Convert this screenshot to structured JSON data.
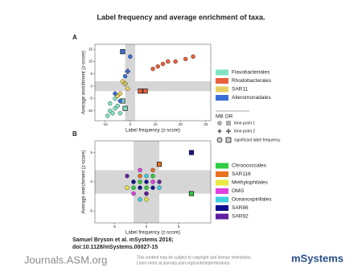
{
  "title": "Label frequency and average enrichment of taxa.",
  "chart_data": [
    {
      "type": "scatter",
      "panel": "A",
      "xlabel": "Label frequency (z-score)",
      "ylabel": "Average enrichment (z-score)",
      "xlim": [
        -14,
        32
      ],
      "ylim": [
        -14,
        17
      ],
      "xticks": [
        -10,
        0,
        10,
        20,
        30
      ],
      "yticks": [
        -10,
        -5,
        0,
        5,
        10,
        15
      ],
      "bands": {
        "x": [
          -2,
          2
        ],
        "y": [
          -2,
          2
        ]
      },
      "series": [
        {
          "name": "Flavobacteriales",
          "color": "#7fe3c3",
          "x": [
            -9,
            -8,
            -7,
            -6,
            -5,
            -4,
            -8,
            -3,
            -6,
            -2
          ],
          "values": [
            -12,
            -10,
            -11,
            -9,
            -8,
            -11,
            -7,
            -6,
            -5,
            -9
          ],
          "markers": [
            "circle",
            "circle",
            "circle",
            "circle",
            "circle",
            "circle",
            "circle",
            "square",
            "circle",
            "square"
          ]
        },
        {
          "name": "Rhodobacterales",
          "color": "#e8603c",
          "x": [
            9,
            11,
            13,
            15,
            18,
            22,
            25,
            4,
            6
          ],
          "values": [
            7,
            8,
            9,
            10,
            10,
            11,
            12,
            -2,
            -2
          ],
          "markers": [
            "circle",
            "circle",
            "circle",
            "circle",
            "circle",
            "circle",
            "circle",
            "square",
            "square"
          ]
        },
        {
          "name": "SAR11",
          "color": "#e8d060",
          "x": [
            -4,
            -3,
            -2,
            -5,
            -1
          ],
          "values": [
            -3,
            2,
            1,
            -4,
            -1
          ],
          "markers": [
            "circle",
            "circle",
            "cross",
            "circle",
            "circle"
          ]
        },
        {
          "name": "Alteromonadales",
          "color": "#3a6fd8",
          "x": [
            -3,
            0,
            -2,
            -1,
            -4,
            -6
          ],
          "values": [
            14,
            12,
            4,
            6,
            -6,
            -3
          ],
          "markers": [
            "square",
            "circle",
            "circle",
            "cross",
            "circle",
            "circle"
          ]
        }
      ],
      "marker_key": {
        "title": "MB OR",
        "items": [
          "time-point 1",
          "time-point 2",
          "significant label frequency"
        ]
      }
    },
    {
      "type": "scatter",
      "panel": "B",
      "xlabel": "Label frequency (z-score)",
      "ylabel": "Average enrichment (z-score)",
      "xlim": [
        -8,
        10
      ],
      "ylim": [
        -7,
        7
      ],
      "xticks": [
        -5,
        0,
        5
      ],
      "yticks": [
        -5,
        0,
        5
      ],
      "bands": {
        "x": [
          -2,
          2
        ],
        "y": [
          -2,
          2
        ]
      },
      "series": [
        {
          "name": "Chroococcales",
          "color": "#2ecc40",
          "x": [
            -1,
            0,
            1,
            7,
            -2
          ],
          "values": [
            0,
            -1,
            1,
            -2,
            -1
          ],
          "markers": [
            "circle",
            "circle",
            "circle",
            "square",
            "circle"
          ]
        },
        {
          "name": "SAR116",
          "color": "#e87020",
          "x": [
            2,
            -1,
            0,
            1
          ],
          "values": [
            3,
            1,
            -2,
            2
          ],
          "markers": [
            "square",
            "circle",
            "circle",
            "circle"
          ]
        },
        {
          "name": "Methylophilales",
          "color": "#e8e840",
          "x": [
            -3,
            -2,
            0
          ],
          "values": [
            -1,
            0,
            -3
          ],
          "markers": [
            "circle",
            "circle",
            "circle"
          ]
        },
        {
          "name": "OMG",
          "color": "#e040e0",
          "x": [
            -1,
            1,
            -2
          ],
          "values": [
            2,
            0,
            -2
          ],
          "markers": [
            "circle",
            "circle",
            "circle"
          ]
        },
        {
          "name": "Oceanospirillales",
          "color": "#40d0e0",
          "x": [
            0,
            2,
            -1
          ],
          "values": [
            1,
            -1,
            -3
          ],
          "markers": [
            "circle",
            "circle",
            "circle"
          ]
        },
        {
          "name": "SAR86",
          "color": "#101090",
          "x": [
            7,
            -2,
            -1,
            0,
            1
          ],
          "values": [
            5,
            0,
            -1,
            0,
            -1
          ],
          "markers": [
            "square",
            "circle",
            "circle",
            "circle",
            "circle"
          ]
        },
        {
          "name": "SAR92",
          "color": "#6020a0",
          "x": [
            -3,
            0,
            2
          ],
          "values": [
            1,
            -2,
            0
          ],
          "markers": [
            "circle",
            "circle",
            "circle"
          ]
        }
      ]
    }
  ],
  "citation": [
    "Samuel Bryson et al. mSystems 2016;",
    "doi:10.1128/mSystems.00027-15"
  ],
  "footer": {
    "logo": "Journals.ASM.org",
    "notice": [
      "This content may be subject to copyright and license restrictions.",
      "Learn more at journals.asm.org/content/permissions"
    ],
    "journal": "mSystems"
  }
}
